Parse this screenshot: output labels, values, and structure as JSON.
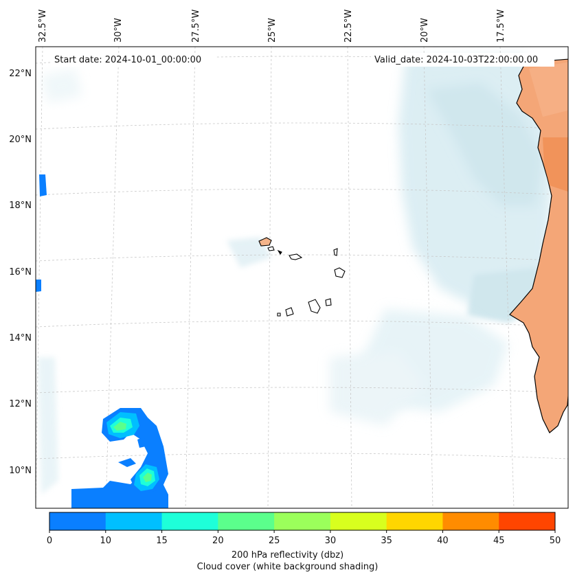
{
  "header": {
    "start_date": "Start date: 2024-10-01_00:00:00",
    "valid_date": "Valid_date: 2024-10-03T22:00:00.00"
  },
  "map": {
    "lon_labels": [
      "32.5°W",
      "30°W",
      "27.5°W",
      "25°W",
      "22.5°W",
      "20°W",
      "17.5°W"
    ],
    "lat_labels": [
      "22°N",
      "20°N",
      "18°N",
      "16°N",
      "14°N",
      "12°N",
      "10°N"
    ],
    "colors": {
      "land_fill": "#f4a677",
      "cloud": "#a9d3df",
      "coast": "#000000",
      "grid": "#c8c8c8"
    }
  },
  "colorbar": {
    "ticks": [
      "0",
      "10",
      "15",
      "20",
      "25",
      "30",
      "35",
      "40",
      "45",
      "50"
    ],
    "colors": [
      "#0a7fff",
      "#00bfff",
      "#1effd9",
      "#5bff8c",
      "#9bff5b",
      "#d8ff1e",
      "#ffd600",
      "#ff8c00",
      "#ff4500"
    ],
    "label_line1": "200 hPa reflectivity (dbz)",
    "label_line2": "Cloud cover (white background shading)"
  }
}
